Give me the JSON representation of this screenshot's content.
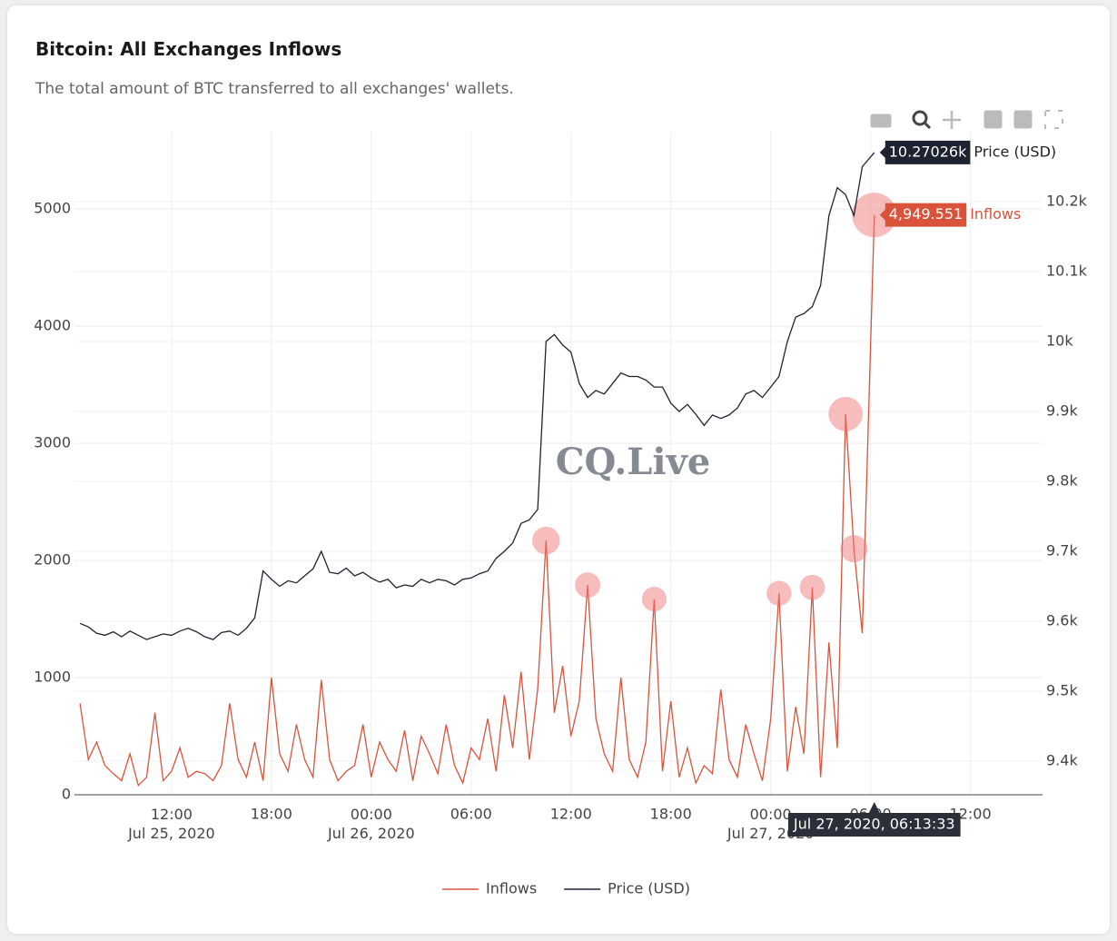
{
  "chart_data": {
    "type": "line",
    "title": "Bitcoin: All Exchanges Inflows",
    "subtitle": "The total amount of BTC transferred to all exchanges' wallets.",
    "watermark": "CQ.Live",
    "x": [
      "2020-07-25T06:30",
      "2020-07-25T07:00",
      "2020-07-25T07:30",
      "2020-07-25T08:00",
      "2020-07-25T08:30",
      "2020-07-25T09:00",
      "2020-07-25T09:30",
      "2020-07-25T10:00",
      "2020-07-25T10:30",
      "2020-07-25T11:00",
      "2020-07-25T11:30",
      "2020-07-25T12:00",
      "2020-07-25T12:30",
      "2020-07-25T13:00",
      "2020-07-25T13:30",
      "2020-07-25T14:00",
      "2020-07-25T14:30",
      "2020-07-25T15:00",
      "2020-07-25T15:30",
      "2020-07-25T16:00",
      "2020-07-25T16:30",
      "2020-07-25T17:00",
      "2020-07-25T17:30",
      "2020-07-25T18:00",
      "2020-07-25T18:30",
      "2020-07-25T19:00",
      "2020-07-25T19:30",
      "2020-07-25T20:00",
      "2020-07-25T20:30",
      "2020-07-25T21:00",
      "2020-07-25T21:30",
      "2020-07-25T22:00",
      "2020-07-25T22:30",
      "2020-07-25T23:00",
      "2020-07-25T23:30",
      "2020-07-26T00:00",
      "2020-07-26T00:30",
      "2020-07-26T01:00",
      "2020-07-26T01:30",
      "2020-07-26T02:00",
      "2020-07-26T02:30",
      "2020-07-26T03:00",
      "2020-07-26T03:30",
      "2020-07-26T04:00",
      "2020-07-26T04:30",
      "2020-07-26T05:00",
      "2020-07-26T05:30",
      "2020-07-26T06:00",
      "2020-07-26T06:30",
      "2020-07-26T07:00",
      "2020-07-26T07:30",
      "2020-07-26T08:00",
      "2020-07-26T08:30",
      "2020-07-26T09:00",
      "2020-07-26T09:30",
      "2020-07-26T10:00",
      "2020-07-26T10:30",
      "2020-07-26T11:00",
      "2020-07-26T11:30",
      "2020-07-26T12:00",
      "2020-07-26T12:30",
      "2020-07-26T13:00",
      "2020-07-26T13:30",
      "2020-07-26T14:00",
      "2020-07-26T14:30",
      "2020-07-26T15:00",
      "2020-07-26T15:30",
      "2020-07-26T16:00",
      "2020-07-26T16:30",
      "2020-07-26T17:00",
      "2020-07-26T17:30",
      "2020-07-26T18:00",
      "2020-07-26T18:30",
      "2020-07-26T19:00",
      "2020-07-26T19:30",
      "2020-07-26T20:00",
      "2020-07-26T20:30",
      "2020-07-26T21:00",
      "2020-07-26T21:30",
      "2020-07-26T22:00",
      "2020-07-26T22:30",
      "2020-07-26T23:00",
      "2020-07-26T23:30",
      "2020-07-27T00:00",
      "2020-07-27T00:30",
      "2020-07-27T01:00",
      "2020-07-27T01:30",
      "2020-07-27T02:00",
      "2020-07-27T02:30",
      "2020-07-27T03:00",
      "2020-07-27T03:30",
      "2020-07-27T04:00",
      "2020-07-27T04:30",
      "2020-07-27T05:00",
      "2020-07-27T05:30",
      "2020-07-27T06:13:33"
    ],
    "xlim": [
      "2020-07-25T06:10",
      "2020-07-27T16:20"
    ],
    "xticks": [
      {
        "value": "2020-07-25T12:00",
        "label": "12:00\nJul 25, 2020"
      },
      {
        "value": "2020-07-25T18:00",
        "label": "18:00"
      },
      {
        "value": "2020-07-26T00:00",
        "label": "00:00\nJul 26, 2020"
      },
      {
        "value": "2020-07-26T06:00",
        "label": "06:00"
      },
      {
        "value": "2020-07-26T12:00",
        "label": "12:00"
      },
      {
        "value": "2020-07-26T18:00",
        "label": "18:00"
      },
      {
        "value": "2020-07-27T00:00",
        "label": "00:00\nJul 27, 2020"
      },
      {
        "value": "2020-07-27T06:00",
        "label": "06:00"
      },
      {
        "value": "2020-07-27T12:00",
        "label": "12:00"
      }
    ],
    "ylim": [
      0,
      5660
    ],
    "yticks": [
      0,
      1000,
      2000,
      3000,
      4000,
      5000
    ],
    "y2lim": [
      9352,
      10300
    ],
    "y2ticks": [
      {
        "value": 9400,
        "label": "9.4k"
      },
      {
        "value": 9500,
        "label": "9.5k"
      },
      {
        "value": 9600,
        "label": "9.6k"
      },
      {
        "value": 9700,
        "label": "9.7k"
      },
      {
        "value": 9800,
        "label": "9.8k"
      },
      {
        "value": 9900,
        "label": "9.9k"
      },
      {
        "value": 10000,
        "label": "10k"
      },
      {
        "value": 10100,
        "label": "10.1k"
      },
      {
        "value": 10200,
        "label": "10.2k"
      }
    ],
    "grid": true,
    "legend": "bottom",
    "hover_x_label": "Jul 27, 2020, 06:13:33",
    "series": [
      {
        "name": "Inflows",
        "color": "#d9533b",
        "highlight_color": "#f07a7a",
        "highlighted_points": [
          56,
          61,
          69,
          84,
          88,
          92,
          93,
          95
        ],
        "values": [
          780,
          300,
          450,
          250,
          180,
          120,
          350,
          80,
          150,
          700,
          120,
          200,
          400,
          150,
          200,
          180,
          120,
          250,
          780,
          300,
          150,
          450,
          120,
          1000,
          350,
          200,
          600,
          300,
          150,
          980,
          300,
          120,
          200,
          250,
          600,
          150,
          450,
          300,
          200,
          550,
          120,
          500,
          350,
          180,
          600,
          250,
          100,
          400,
          300,
          650,
          200,
          850,
          400,
          1050,
          300,
          900,
          2170,
          700,
          1100,
          500,
          800,
          1790,
          650,
          350,
          200,
          1000,
          300,
          150,
          450,
          1670,
          200,
          800,
          150,
          400,
          100,
          250,
          180,
          900,
          300,
          150,
          600,
          350,
          120,
          650,
          1720,
          200,
          750,
          350,
          1770,
          150,
          1300,
          400,
          3250,
          2100,
          1380,
          4949.551
        ],
        "value_labels": [
          null,
          null,
          null,
          null,
          null,
          null,
          null,
          null,
          null,
          null,
          null,
          null,
          null,
          null,
          null,
          null,
          null,
          null,
          null,
          null,
          null,
          null,
          null,
          null,
          null,
          null,
          null,
          null,
          null,
          null,
          null,
          null,
          null,
          null,
          null,
          null,
          null,
          null,
          null,
          null,
          null,
          null,
          null,
          null,
          null,
          null,
          null,
          null,
          null,
          null,
          null,
          null,
          null,
          null,
          null,
          null,
          null,
          null,
          null,
          null,
          null,
          null,
          null,
          null,
          null,
          null,
          null,
          null,
          null,
          null,
          null,
          null,
          null,
          null,
          null,
          null,
          null,
          null,
          null,
          null,
          null,
          null,
          null,
          null,
          null,
          null,
          null,
          null,
          null,
          null,
          null,
          null,
          null,
          null,
          null,
          "4,949.551"
        ]
      },
      {
        "name": "Price (USD)",
        "color": "#1d2330",
        "axis": "y2",
        "values": [
          9597,
          9592,
          9583,
          9580,
          9585,
          9578,
          9586,
          9580,
          9574,
          9578,
          9582,
          9580,
          9586,
          9590,
          9585,
          9578,
          9574,
          9584,
          9586,
          9580,
          9590,
          9605,
          9672,
          9660,
          9650,
          9658,
          9655,
          9665,
          9675,
          9700,
          9670,
          9668,
          9676,
          9665,
          9670,
          9662,
          9656,
          9660,
          9648,
          9652,
          9650,
          9660,
          9655,
          9660,
          9658,
          9652,
          9660,
          9662,
          9668,
          9672,
          9690,
          9700,
          9712,
          9740,
          9745,
          9760,
          10000,
          10010,
          9995,
          9985,
          9940,
          9920,
          9930,
          9925,
          9940,
          9955,
          9950,
          9950,
          9945,
          9935,
          9935,
          9912,
          9900,
          9910,
          9896,
          9880,
          9895,
          9890,
          9895,
          9905,
          9925,
          9930,
          9920,
          9935,
          9950,
          10000,
          10035,
          10040,
          10050,
          10080,
          10180,
          10220,
          10210,
          10180,
          10250,
          10270.26
        ],
        "value_labels": [
          null,
          null,
          null,
          null,
          null,
          null,
          null,
          null,
          null,
          null,
          null,
          null,
          null,
          null,
          null,
          null,
          null,
          null,
          null,
          null,
          null,
          null,
          null,
          null,
          null,
          null,
          null,
          null,
          null,
          null,
          null,
          null,
          null,
          null,
          null,
          null,
          null,
          null,
          null,
          null,
          null,
          null,
          null,
          null,
          null,
          null,
          null,
          null,
          null,
          null,
          null,
          null,
          null,
          null,
          null,
          null,
          null,
          null,
          null,
          null,
          null,
          null,
          null,
          null,
          null,
          null,
          null,
          null,
          null,
          null,
          null,
          null,
          null,
          null,
          null,
          null,
          null,
          null,
          null,
          null,
          null,
          null,
          null,
          null,
          null,
          null,
          null,
          null,
          null,
          null,
          null,
          null,
          null,
          null,
          null,
          "10.27026k"
        ]
      }
    ]
  }
}
